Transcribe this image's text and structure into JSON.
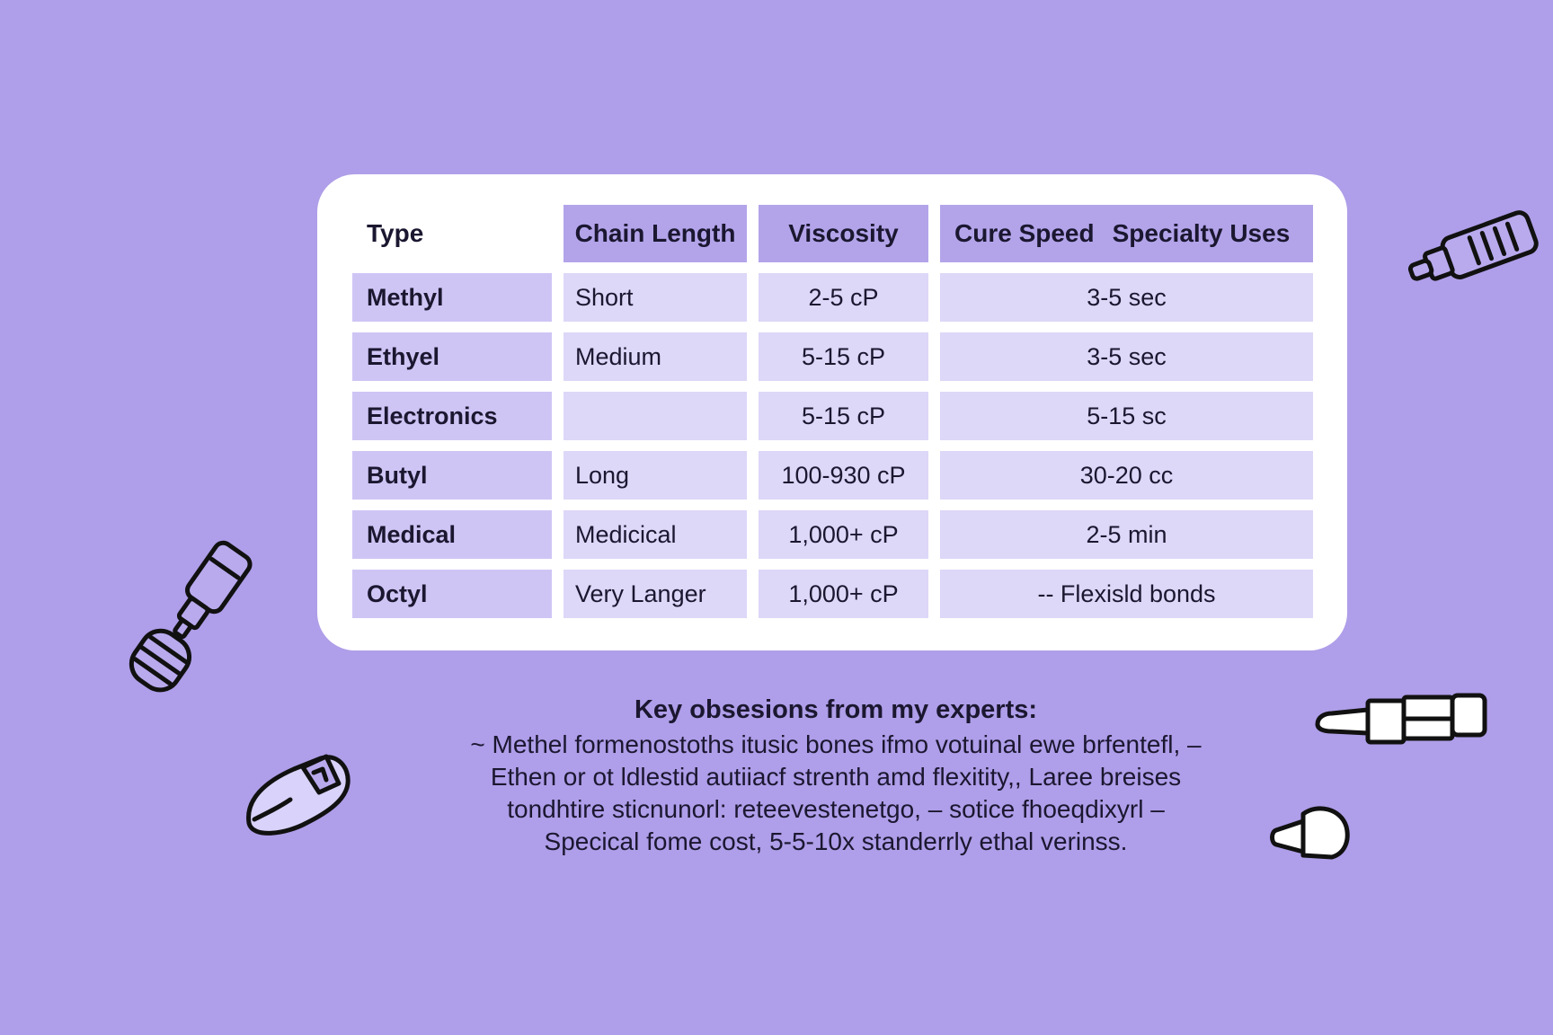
{
  "table": {
    "headers": {
      "type": "Type",
      "chain_length": "Chain Length",
      "viscosity": "Viscosity",
      "cure_speed": "Cure Speed",
      "specialty_uses": "Specialty Uses"
    },
    "rows": [
      {
        "type": "Methyl",
        "chain": "Short",
        "viscosity": "2-5 cP",
        "last": "3-5 sec"
      },
      {
        "type": "Ethyel",
        "chain": "Medium",
        "viscosity": "5-15 cP",
        "last": "3-5 sec"
      },
      {
        "type": "Electronics",
        "chain": "",
        "viscosity": "5-15 cP",
        "last": "5-15 sc"
      },
      {
        "type": "Butyl",
        "chain": "Long",
        "viscosity": "100-930 cP",
        "last": "30-20 cc"
      },
      {
        "type": "Medical",
        "chain": "Medicical",
        "viscosity": "1,000+ cP",
        "last": "2-5 min"
      },
      {
        "type": "Octyl",
        "chain": "Very Langer",
        "viscosity": "1,000+ cP",
        "last": "-- Flexisld bonds"
      }
    ]
  },
  "notes": {
    "title": "Key obsesions from my experts:",
    "lines": [
      "~ Methel formenostoths itusic bones ifmo votuinal ewe brfentefl, –",
      "Ethen or ot ldlestid autiiacf strenth amd flexitity,, Laree breises",
      "tondhtire sticnunorl: reteevestenetgo, – sotice fhoeqdixyrl –",
      "Specical fome cost, 5-5-10x standerrly ethal verinss."
    ]
  },
  "icons": {
    "top_right": "glue-tube-icon",
    "left_mid": "glue-applicator-icon",
    "left_bottom": "glue-bottle-icon",
    "right_mid": "dropper-tube-icon",
    "right_bottom": "glue-cap-icon"
  },
  "colors": {
    "background": "#af9ee9",
    "card": "#ffffff",
    "header_cell": "#b3a4ea",
    "type_cell": "#cfc5f5",
    "data_cell": "#ddd7f8"
  }
}
